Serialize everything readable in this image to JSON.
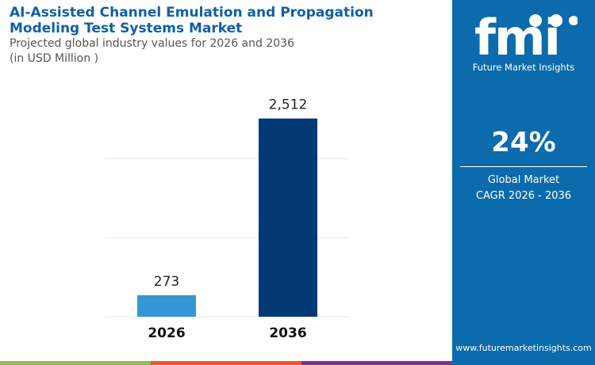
{
  "title": "AI-Assisted Channel Emulation and Propagation Modeling Test Systems Market",
  "subtitle": "Projected global industry values for 2026 and 2036",
  "unit": "(in USD Million )",
  "brand": {
    "name": "Future Market Insights",
    "logo_text": "fmi",
    "url": "www.futuremarketinsights.com"
  },
  "cagr": {
    "value": "24%",
    "label_line1": "Global Market",
    "label_line2": "CAGR 2026 - 2036"
  },
  "colors": {
    "panel": "#0c6bac",
    "bar_2026": "#3596d6",
    "bar_2036": "#033a75",
    "stripe_green": "#8cc152",
    "stripe_orange": "#e8582a",
    "stripe_purple": "#7c2f8c"
  },
  "chart_data": {
    "type": "bar",
    "categories": [
      "2026",
      "2036"
    ],
    "values": [
      273,
      2512
    ],
    "data_labels": [
      "273",
      "2,512"
    ],
    "ylim": [
      0,
      3000
    ],
    "grid": true
  }
}
